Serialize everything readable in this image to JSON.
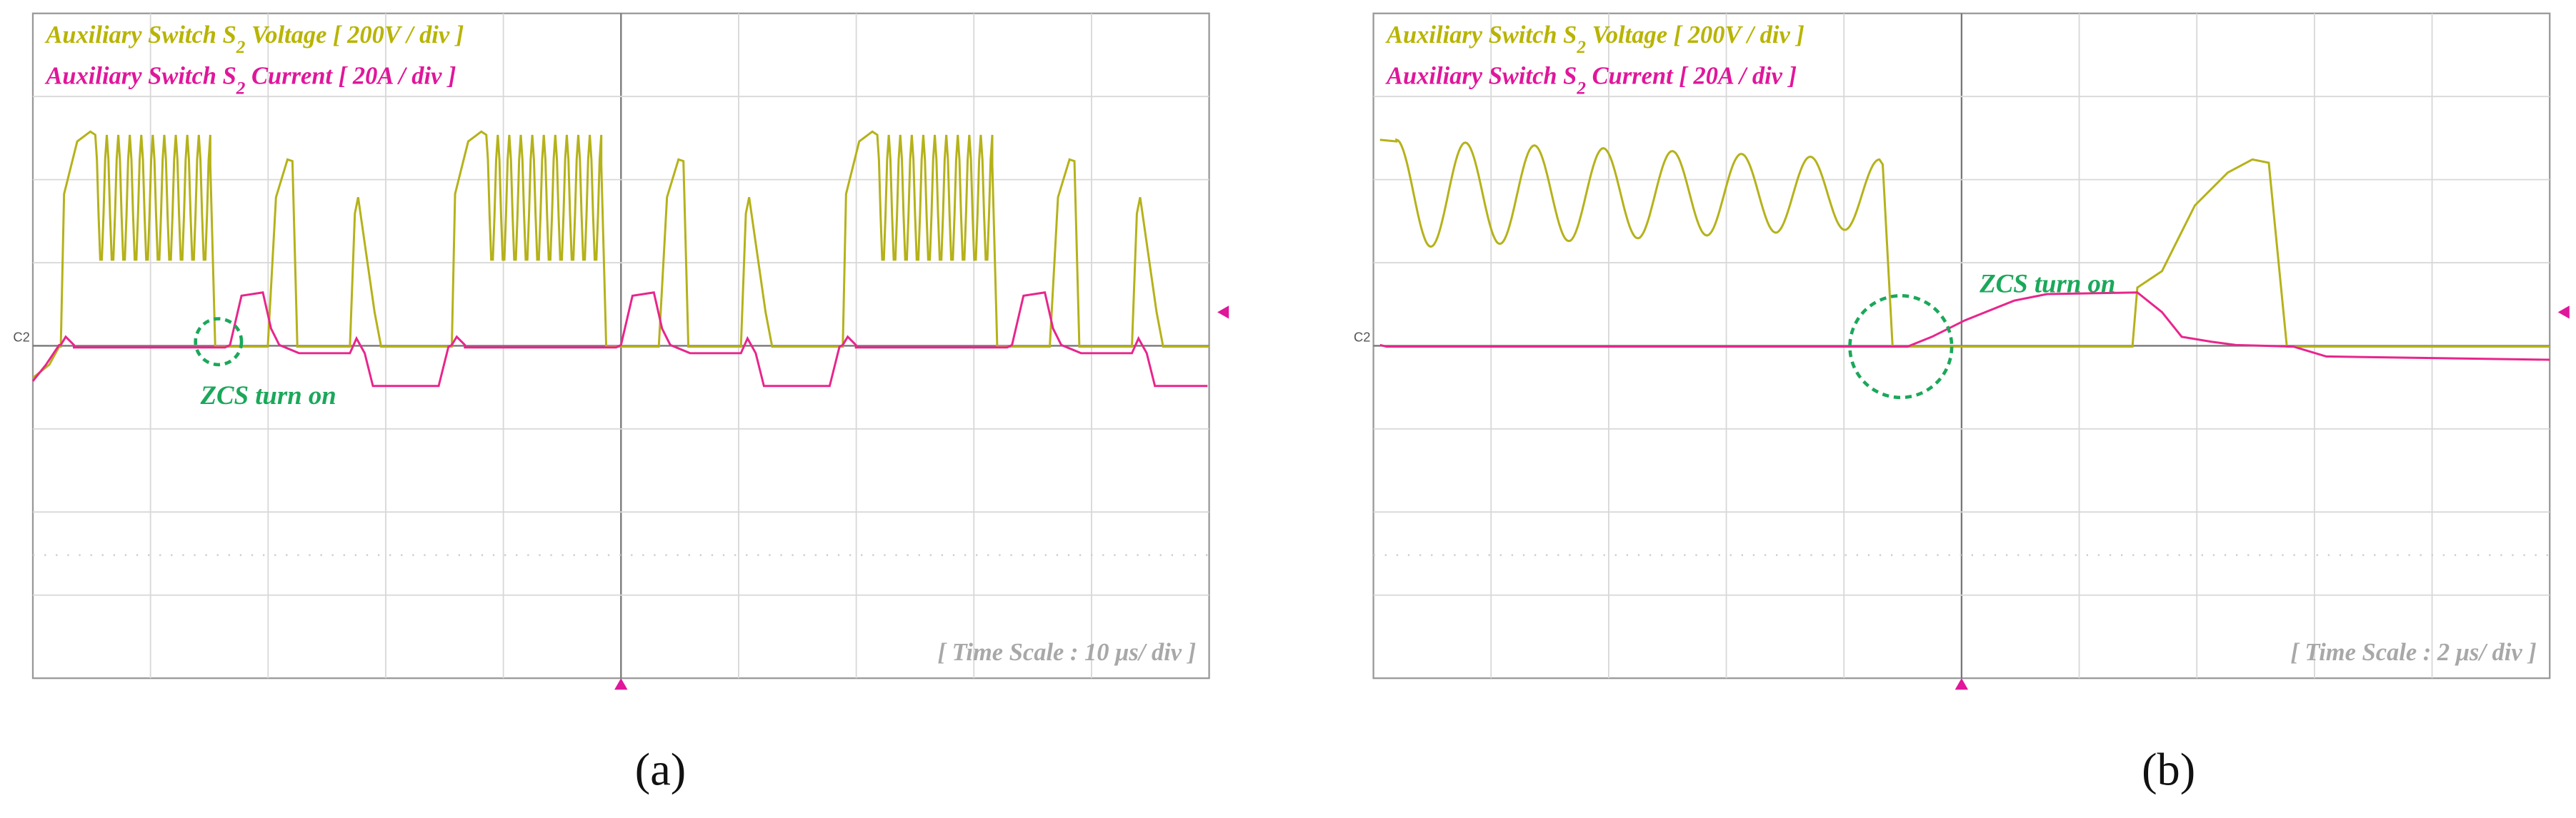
{
  "panels": [
    {
      "voltage_label": {
        "text": "Auxiliary Switch S",
        "subscript": "2",
        "suffix": " Voltage [ 200V / div ]"
      },
      "current_label": {
        "text": "Auxiliary Switch S",
        "subscript": "2",
        "suffix": " Current [ 20A / div ]"
      },
      "channel": "C2",
      "annotation": "ZCS turn on",
      "time_scale": "[ Time Scale : 10 μs/ div ]",
      "caption": "(a)"
    },
    {
      "voltage_label": {
        "text": "Auxiliary Switch S",
        "subscript": "2",
        "suffix": " Voltage [ 200V / div ]"
      },
      "current_label": {
        "text": "Auxiliary Switch S",
        "subscript": "2",
        "suffix": " Current [ 20A / div ]"
      },
      "channel": "C2",
      "annotation": "ZCS turn on",
      "time_scale": "[ Time Scale : 2 μs/ div ]",
      "caption": "(b)"
    }
  ]
}
